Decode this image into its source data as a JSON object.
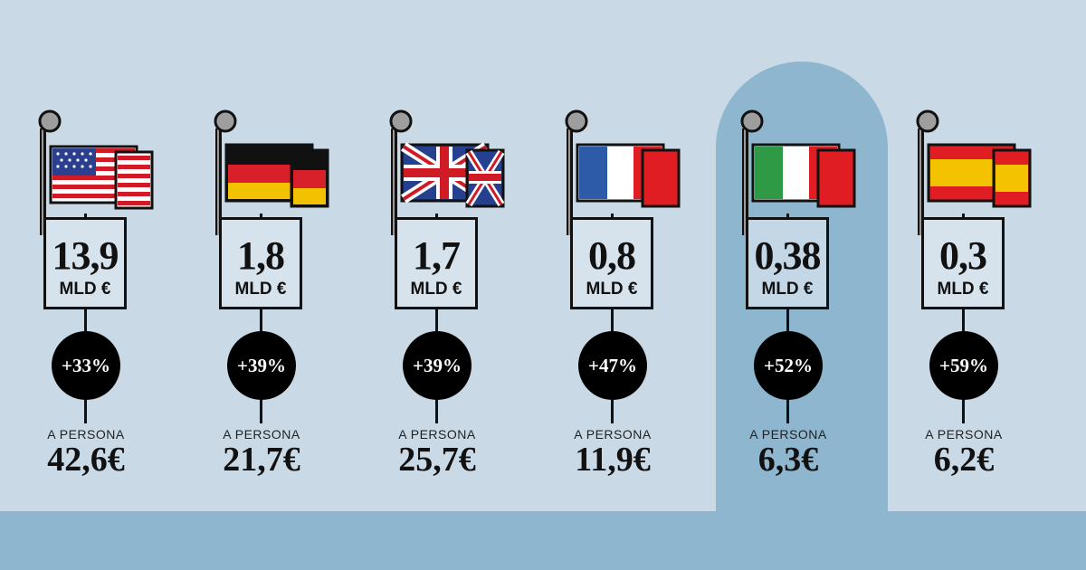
{
  "columns": [
    {
      "country": "USA",
      "flag_icon": "usa-flag-icon",
      "value": "13,9",
      "unit": "MLD €",
      "change": "+33%",
      "per_label": "A PERSONA",
      "per_value": "42,6€",
      "highlighted": false
    },
    {
      "country": "Germania",
      "flag_icon": "germany-flag-icon",
      "value": "1,8",
      "unit": "MLD €",
      "change": "+39%",
      "per_label": "A PERSONA",
      "per_value": "21,7€",
      "highlighted": false
    },
    {
      "country": "Regno Unito",
      "flag_icon": "uk-flag-icon",
      "value": "1,7",
      "unit": "MLD €",
      "change": "+39%",
      "per_label": "A PERSONA",
      "per_value": "25,7€",
      "highlighted": false
    },
    {
      "country": "Francia",
      "flag_icon": "france-flag-icon",
      "value": "0,8",
      "unit": "MLD €",
      "change": "+47%",
      "per_label": "A PERSONA",
      "per_value": "11,9€",
      "highlighted": false
    },
    {
      "country": "Italia",
      "flag_icon": "italy-flag-icon",
      "value": "0,38",
      "unit": "MLD €",
      "change": "+52%",
      "per_label": "A PERSONA",
      "per_value": "6,3€",
      "highlighted": true
    },
    {
      "country": "Spagna",
      "flag_icon": "spain-flag-icon",
      "value": "0,3",
      "unit": "MLD €",
      "change": "+59%",
      "per_label": "A PERSONA",
      "per_value": "6,2€",
      "highlighted": false
    }
  ],
  "colors": {
    "background": "#c9d9e6",
    "highlight": "#8fb6cf",
    "badge": "#000000",
    "ink": "#111111"
  }
}
